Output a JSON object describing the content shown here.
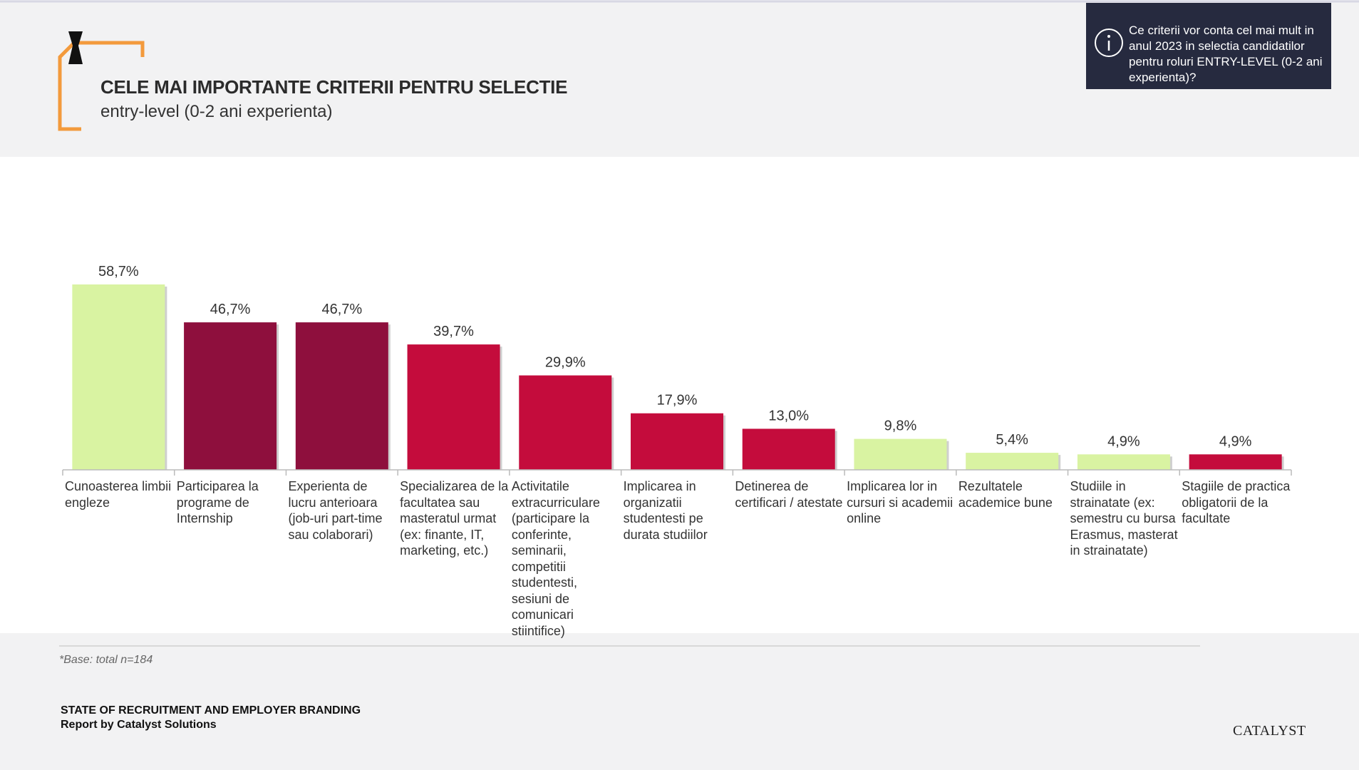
{
  "chart_data": {
    "type": "bar",
    "title": "CELE MAI IMPORTANTE CRITERII PENTRU SELECTIE",
    "subtitle": "entry-level (0-2 ani experienta)",
    "annotation": "Ce criterii vor conta cel mai mult in anul 2023 in selectia candidatilor pentru roluri ENTRY-LEVEL (0-2 ani experienta)?",
    "note": "*Base: total n=184",
    "footer": [
      "STATE OF RECRUITMENT AND EMPLOYER BRANDING",
      "Report by Catalyst Solutions"
    ],
    "logo": "CATALYST",
    "categories": [
      "Cunoasterea limbii engleze",
      "Participarea la programe de Internship",
      "Experienta de lucru anterioara (job-uri part-time sau colaborari)",
      "Specializarea de la facultatea sau masteratul urmat (ex: finante, IT, marketing, etc.)",
      "Activitatile extracurriculare (participare la conferinte, seminarii, competitii studentesti, sesiuni de comunicari stiintifice)",
      "Implicarea in organizatii studentesti pe durata studiilor",
      "Detinerea de certificari / atestate",
      "Implicarea lor in cursuri si academii online",
      "Rezultatele academice bune",
      "Studiile in strainatate (ex: semestru cu bursa Erasmus, masterat in strainatate)",
      "Stagiile de practica obligatorii de la facultate"
    ],
    "values": [
      58.7,
      46.7,
      46.7,
      39.7,
      29.9,
      17.9,
      13.0,
      9.8,
      5.4,
      4.9,
      4.9
    ],
    "value_labels": [
      "58,7%",
      "46,7%",
      "46,7%",
      "39,7%",
      "29,9%",
      "17,9%",
      "13,0%",
      "9,8%",
      "5,4%",
      "4,9%",
      "4,9%"
    ],
    "colors": [
      "#d9f3a2",
      "#8e0f3d",
      "#8e0f3d",
      "#c40c3c",
      "#c40c3c",
      "#c40c3c",
      "#c40c3c",
      "#d9f3a2",
      "#d9f3a2",
      "#d9f3a2",
      "#c40c3c"
    ]
  }
}
